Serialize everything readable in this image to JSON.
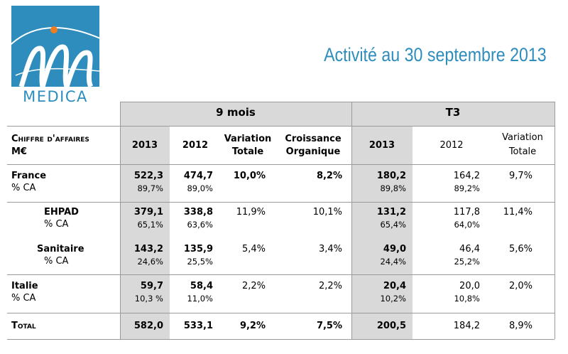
{
  "logo": {
    "text": "MEDICA"
  },
  "title": "Activité au 30 septembre 2013",
  "groups": {
    "nine_months": "9 mois",
    "t3": "T3"
  },
  "headers": {
    "label": [
      "Chiffre d'affaires",
      "M€"
    ],
    "y2013": "2013",
    "y2012": "2012",
    "variation": [
      "Variation",
      "Totale"
    ],
    "croissance": [
      "Croissance",
      "Organique"
    ],
    "t3_2013": "2013",
    "t3_2012": "2012",
    "t3_variation": [
      "Variation",
      "Totale"
    ]
  },
  "rows": [
    {
      "label": "France",
      "sub": "% CA",
      "v2013": "522,3",
      "p2013": "89,7%",
      "v2012": "474,7",
      "p2012": "89,0%",
      "var": "10,0%",
      "croiss": "8,2%",
      "t3_2013": "180,2",
      "t3_p2013": "89,8%",
      "t3_2012": "164,2",
      "t3_p2012": "89,2%",
      "t3_var": "9,7%"
    },
    {
      "label": "EHPAD",
      "sub": "% CA",
      "v2013": "379,1",
      "p2013": "65,1%",
      "v2012": "338,8",
      "p2012": "63,6%",
      "var": "11,9%",
      "croiss": "10,1%",
      "t3_2013": "131,2",
      "t3_p2013": "65,4%",
      "t3_2012": "117,8",
      "t3_p2012": "64,0%",
      "t3_var": "11,4%"
    },
    {
      "label": "Sanitaire",
      "sub": "% CA",
      "v2013": "143,2",
      "p2013": "24,6%",
      "v2012": "135,9",
      "p2012": "25,5%",
      "var": "5,4%",
      "croiss": "3,4%",
      "t3_2013": "49,0",
      "t3_p2013": "24,4%",
      "t3_2012": "46,4",
      "t3_p2012": "25,2%",
      "t3_var": "5,6%"
    },
    {
      "label": "Italie",
      "sub": "% CA",
      "v2013": "59,7",
      "p2013": "10,3 %",
      "v2012": "58,4",
      "p2012": "11,0%",
      "var": "2,2%",
      "croiss": "2,2%",
      "t3_2013": "20,4",
      "t3_p2013": "10,2%",
      "t3_2012": "20,0",
      "t3_p2012": "10,8%",
      "t3_var": "2,0%"
    }
  ],
  "total": {
    "label": "Total",
    "v2013": "582,0",
    "v2012": "533,1",
    "var": "9,2%",
    "croiss": "7,5%",
    "t3_2013": "200,5",
    "t3_2012": "184,2",
    "t3_var": "8,9%"
  },
  "colors": {
    "brand": "#2e8dbd",
    "shade": "#d9d9d9",
    "accent_dot": "#f07d1e"
  }
}
